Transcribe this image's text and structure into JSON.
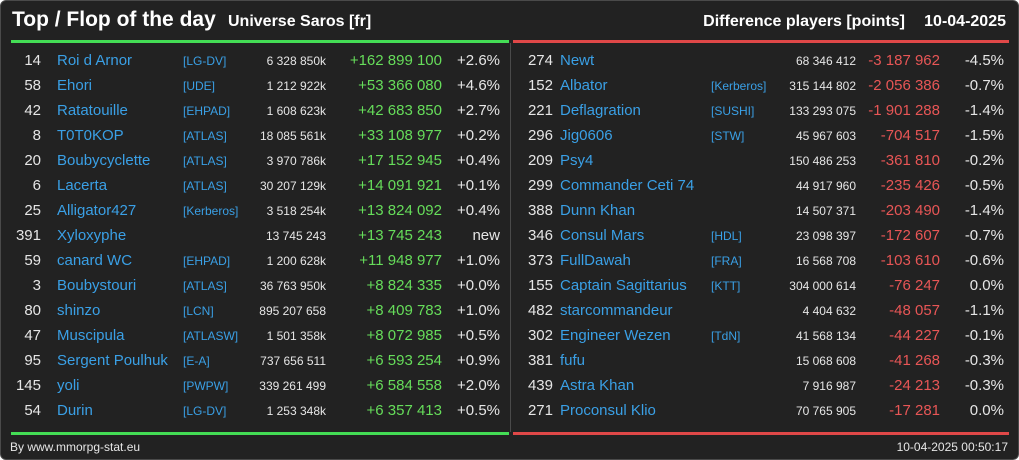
{
  "header": {
    "title": "Top / Flop of the day",
    "universe": "Universe Saros [fr]",
    "difference_label": "Difference players [points]",
    "date": "10-04-2025"
  },
  "colors": {
    "top_accent": "#44dd55",
    "flop_accent": "#e04848",
    "name": "#3aa0e6",
    "background": "#222222"
  },
  "top": [
    {
      "rank": "14",
      "name": "Roi d Arnor",
      "alliance": "[LG-DV]",
      "points": "6 328 850k",
      "delta": "+162 899 100",
      "pct": "+2.6%"
    },
    {
      "rank": "58",
      "name": "Ehori",
      "alliance": "[UDE]",
      "points": "1 212 922k",
      "delta": "+53 366 080",
      "pct": "+4.6%"
    },
    {
      "rank": "42",
      "name": "Ratatouille",
      "alliance": "[EHPAD]",
      "points": "1 608 623k",
      "delta": "+42 683 850",
      "pct": "+2.7%"
    },
    {
      "rank": "8",
      "name": "T0T0KOP",
      "alliance": "[ATLAS]",
      "points": "18 085 561k",
      "delta": "+33 108 977",
      "pct": "+0.2%"
    },
    {
      "rank": "20",
      "name": "Boubycyclette",
      "alliance": "[ATLAS]",
      "points": "3 970 786k",
      "delta": "+17 152 945",
      "pct": "+0.4%"
    },
    {
      "rank": "6",
      "name": "Lacerta",
      "alliance": "[ATLAS]",
      "points": "30 207 129k",
      "delta": "+14 091 921",
      "pct": "+0.1%"
    },
    {
      "rank": "25",
      "name": "Alligator427",
      "alliance": "[Kerberos]",
      "points": "3 518 254k",
      "delta": "+13 824 092",
      "pct": "+0.4%"
    },
    {
      "rank": "391",
      "name": "Xyloxyphe",
      "alliance": "",
      "points": "13 745 243",
      "delta": "+13 745 243",
      "pct": "new"
    },
    {
      "rank": "59",
      "name": "canard WC",
      "alliance": "[EHPAD]",
      "points": "1 200 628k",
      "delta": "+11 948 977",
      "pct": "+1.0%"
    },
    {
      "rank": "3",
      "name": "Boubystouri",
      "alliance": "[ATLAS]",
      "points": "36 763 950k",
      "delta": "+8 824 335",
      "pct": "+0.0%"
    },
    {
      "rank": "80",
      "name": "shinzo",
      "alliance": "[LCN]",
      "points": "895 207 658",
      "delta": "+8 409 783",
      "pct": "+1.0%"
    },
    {
      "rank": "47",
      "name": "Muscipula",
      "alliance": "[ATLASW]",
      "points": "1 501 358k",
      "delta": "+8 072 985",
      "pct": "+0.5%"
    },
    {
      "rank": "95",
      "name": "Sergent Poulhuk",
      "alliance": "[E-A]",
      "points": "737 656 511",
      "delta": "+6 593 254",
      "pct": "+0.9%"
    },
    {
      "rank": "145",
      "name": "yoli",
      "alliance": "[PWPW]",
      "points": "339 261 499",
      "delta": "+6 584 558",
      "pct": "+2.0%"
    },
    {
      "rank": "54",
      "name": "Durin",
      "alliance": "[LG-DV]",
      "points": "1 253 348k",
      "delta": "+6 357 413",
      "pct": "+0.5%"
    }
  ],
  "flop": [
    {
      "rank": "274",
      "name": "Newt",
      "alliance": "",
      "points": "68 346 412",
      "delta": "-3 187 962",
      "pct": "-4.5%"
    },
    {
      "rank": "152",
      "name": "Albator",
      "alliance": "[Kerberos]",
      "points": "315 144 802",
      "delta": "-2 056 386",
      "pct": "-0.7%"
    },
    {
      "rank": "221",
      "name": "Deflagration",
      "alliance": "[SUSHI]",
      "points": "133 293 075",
      "delta": "-1 901 288",
      "pct": "-1.4%"
    },
    {
      "rank": "296",
      "name": "Jig0606",
      "alliance": "[STW]",
      "points": "45 967 603",
      "delta": "-704 517",
      "pct": "-1.5%"
    },
    {
      "rank": "209",
      "name": "Psy4",
      "alliance": "",
      "points": "150 486 253",
      "delta": "-361 810",
      "pct": "-0.2%"
    },
    {
      "rank": "299",
      "name": "Commander Ceti 74",
      "alliance": "",
      "points": "44 917 960",
      "delta": "-235 426",
      "pct": "-0.5%"
    },
    {
      "rank": "388",
      "name": "Dunn Khan",
      "alliance": "",
      "points": "14 507 371",
      "delta": "-203 490",
      "pct": "-1.4%"
    },
    {
      "rank": "346",
      "name": "Consul Mars",
      "alliance": "[HDL]",
      "points": "23 098 397",
      "delta": "-172 607",
      "pct": "-0.7%"
    },
    {
      "rank": "373",
      "name": "FullDawah",
      "alliance": "[FRA]",
      "points": "16 568 708",
      "delta": "-103 610",
      "pct": "-0.6%"
    },
    {
      "rank": "155",
      "name": "Captain Sagittarius",
      "alliance": "[KTT]",
      "points": "304 000 614",
      "delta": "-76 247",
      "pct": "0.0%"
    },
    {
      "rank": "482",
      "name": "starcommandeur",
      "alliance": "",
      "points": "4 404 632",
      "delta": "-48 057",
      "pct": "-1.1%"
    },
    {
      "rank": "302",
      "name": "Engineer Wezen",
      "alliance": "[TdN]",
      "points": "41 568 134",
      "delta": "-44 227",
      "pct": "-0.1%"
    },
    {
      "rank": "381",
      "name": "fufu",
      "alliance": "",
      "points": "15 068 608",
      "delta": "-41 268",
      "pct": "-0.3%"
    },
    {
      "rank": "439",
      "name": "Astra Khan",
      "alliance": "",
      "points": "7 916 987",
      "delta": "-24 213",
      "pct": "-0.3%"
    },
    {
      "rank": "271",
      "name": "Proconsul Klio",
      "alliance": "",
      "points": "70 765 905",
      "delta": "-17 281",
      "pct": "0.0%"
    }
  ],
  "footer": {
    "source": "By www.mmorpg-stat.eu",
    "timestamp": "10-04-2025 00:50:17"
  }
}
